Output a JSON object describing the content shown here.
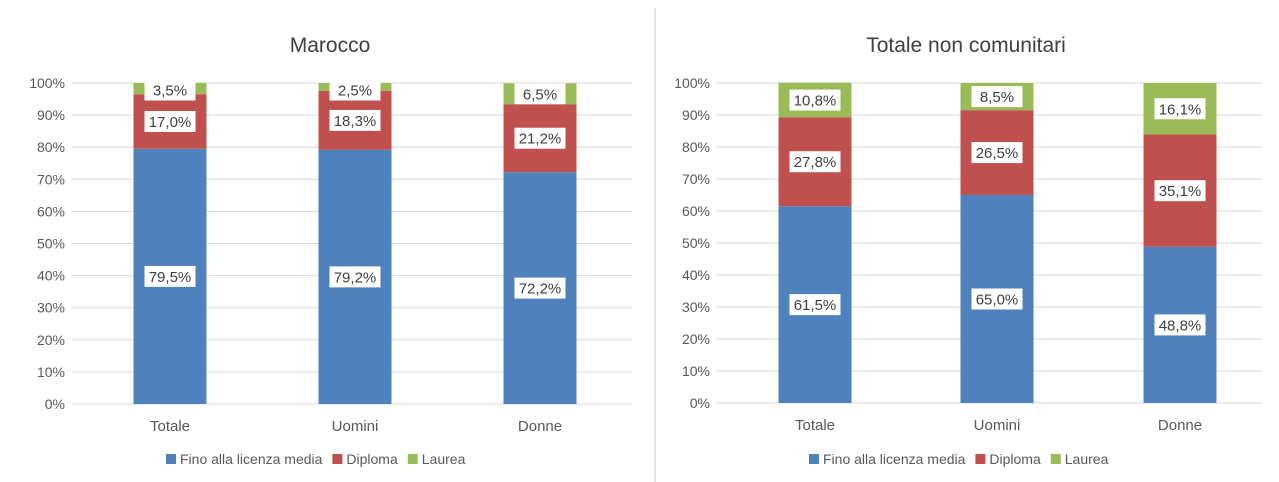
{
  "colors": {
    "series": [
      "#4f81bd",
      "#c0504d",
      "#9bbb59"
    ],
    "grid": "#d9d9d9",
    "panel_border": "#d9d9d9",
    "text": "#595959"
  },
  "chart_data": [
    {
      "type": "bar",
      "stacked": true,
      "title": "Marocco",
      "categories": [
        "Totale",
        "Uomini",
        "Donne"
      ],
      "series": [
        {
          "name": "Fino alla licenza media",
          "values": [
            79.5,
            79.2,
            72.2
          ],
          "labels": [
            "79,5%",
            "79,2%",
            "72,2%"
          ]
        },
        {
          "name": "Diploma",
          "values": [
            17.0,
            18.3,
            21.2
          ],
          "labels": [
            "17,0%",
            "18,3%",
            "21,2%"
          ]
        },
        {
          "name": "Laurea",
          "values": [
            3.5,
            2.5,
            6.5
          ],
          "labels": [
            "3,5%",
            "2,5%",
            "6,5%"
          ]
        }
      ],
      "yticks": [
        "0%",
        "10%",
        "20%",
        "30%",
        "40%",
        "50%",
        "60%",
        "70%",
        "80%",
        "90%",
        "100%"
      ],
      "ylim": [
        0,
        100
      ],
      "grid": true,
      "legend": "bottom"
    },
    {
      "type": "bar",
      "stacked": true,
      "title": "Totale non comunitari",
      "categories": [
        "Totale",
        "Uomini",
        "Donne"
      ],
      "series": [
        {
          "name": "Fino alla licenza media",
          "values": [
            61.5,
            65.0,
            48.8
          ],
          "labels": [
            "61,5%",
            "65,0%",
            "48,8%"
          ]
        },
        {
          "name": "Diploma",
          "values": [
            27.8,
            26.5,
            35.1
          ],
          "labels": [
            "27,8%",
            "26,5%",
            "35,1%"
          ]
        },
        {
          "name": "Laurea",
          "values": [
            10.8,
            8.5,
            16.1
          ],
          "labels": [
            "10,8%",
            "8,5%",
            "16,1%"
          ]
        }
      ],
      "yticks": [
        "0%",
        "10%",
        "20%",
        "30%",
        "40%",
        "50%",
        "60%",
        "70%",
        "80%",
        "90%",
        "100%"
      ],
      "ylim": [
        0,
        100
      ],
      "grid": true,
      "legend": "bottom"
    }
  ]
}
